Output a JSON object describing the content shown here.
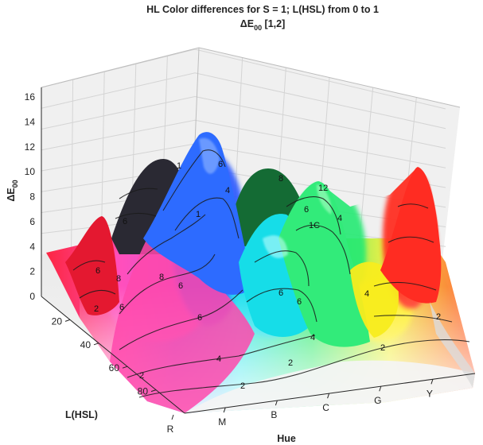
{
  "title": {
    "line1": "HL Color differences for S = 1;  L(HSL) from 0 to 1",
    "line2_symbol": "ΔE",
    "line2_sub": "00",
    "line2_rest": "  [1,2]"
  },
  "colors": {
    "pane_wall": "#f0f0f0",
    "grid": "#d7d7d7",
    "axis": "#262626",
    "contour": "#1a1a1a"
  },
  "chart_data": {
    "type": "surface3d",
    "title": "HL Color differences for S = 1;  L(HSL) from 0 to 1  ΔE00 [1,2]",
    "zlabel": "ΔE00",
    "ylabel": "L(HSL)",
    "xlabel": "Hue",
    "zlim": [
      0,
      16
    ],
    "z_ticks": [
      "0",
      "2",
      "4",
      "6",
      "8",
      "10",
      "12",
      "14",
      "16"
    ],
    "l_ticks": [
      "20",
      "40",
      "60",
      "80"
    ],
    "l_range": [
      0,
      100
    ],
    "hue_ticks": [
      "R",
      "M",
      "B",
      "C",
      "G",
      "Y"
    ],
    "grid": true,
    "peaks": [
      {
        "hue": "R",
        "hue_pos": 0.03,
        "l": 35,
        "value": 9,
        "color": "#e8102a"
      },
      {
        "hue": "M",
        "hue_pos": 0.2,
        "l": 38,
        "value": 7.5,
        "color": "#ff45b0"
      },
      {
        "hue": "B",
        "hue_pos": 0.27,
        "l": 20,
        "value": 8.5,
        "color": "#25242e"
      },
      {
        "hue": "B",
        "hue_pos": 0.34,
        "l": 40,
        "value": 15.5,
        "color": "#1e60ff"
      },
      {
        "hue": "C",
        "hue_pos": 0.48,
        "l": 35,
        "value": 8,
        "color": "#00d7e6"
      },
      {
        "hue": "G",
        "hue_pos": 0.55,
        "l": 20,
        "value": 10,
        "color": "#118a3c"
      },
      {
        "hue": "G",
        "hue_pos": 0.64,
        "l": 40,
        "value": 12,
        "color": "#20ee70"
      },
      {
        "hue": "Y",
        "hue_pos": 0.88,
        "l": 25,
        "value": 12,
        "color": "#ff3020"
      }
    ],
    "contour_levels": [
      "2",
      "4",
      "6",
      "8",
      "1",
      "1C",
      "12"
    ]
  }
}
